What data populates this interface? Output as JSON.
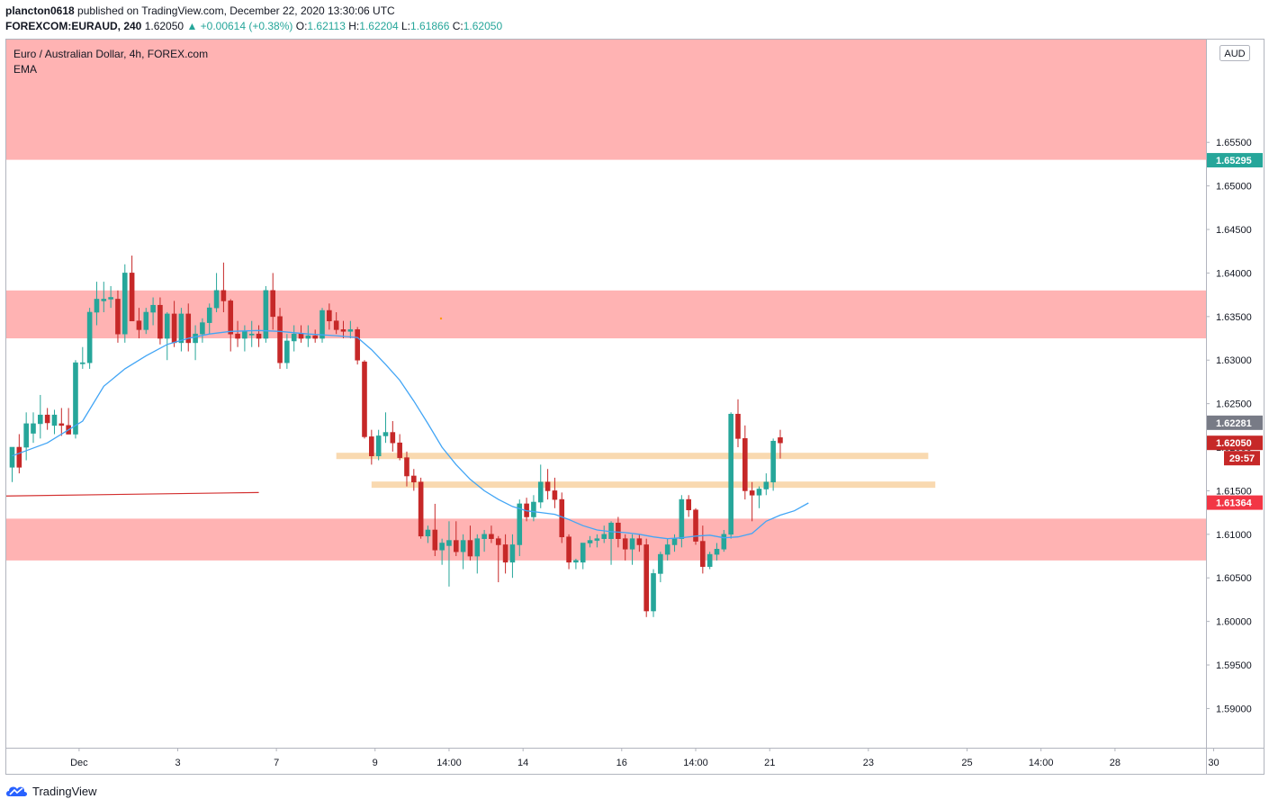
{
  "header": {
    "user": "plancton0618",
    "published": "published on TradingView.com, December 22, 2020 13:30:06 UTC",
    "symbol": "FOREXCOM:EURAUD, 240",
    "last": "1.62050",
    "change": "▲ +0.00614 (+0.38%)",
    "o_label": "O:",
    "o": "1.62113",
    "h_label": "H:",
    "h": "1.62204",
    "l_label": "L:",
    "l": "1.61866",
    "c_label": "C:",
    "c": "1.62050"
  },
  "legend": {
    "title": "Euro / Australian Dollar, 4h, FOREX.com",
    "indicator": "EMA"
  },
  "currency_button": "AUD",
  "footer": {
    "brand": "TradingView"
  },
  "colors": {
    "up": "#26a69a",
    "down": "#c62828",
    "ema": "#42a5f5",
    "zone": "#ffb3b3",
    "level": "#f9d9b0"
  },
  "chart_data": {
    "type": "candlestick",
    "title": "Euro / Australian Dollar, 4h, FOREX.com",
    "ylim": [
      1.5855,
      1.6668
    ],
    "y_ticks": [
      "1.65500",
      "1.65000",
      "1.64500",
      "1.64000",
      "1.63500",
      "1.63000",
      "1.62500",
      "1.62000",
      "1.61500",
      "1.61000",
      "1.60500",
      "1.60000",
      "1.59500",
      "1.59000"
    ],
    "x_ticks": [
      {
        "label": "Dec",
        "i": 9.5
      },
      {
        "label": "3",
        "i": 23.5
      },
      {
        "label": "7",
        "i": 37.5
      },
      {
        "label": "9",
        "i": 51.5
      },
      {
        "label": "14:00",
        "i": 62
      },
      {
        "label": "14",
        "i": 72.5
      },
      {
        "label": "16",
        "i": 86.5
      },
      {
        "label": "14:00",
        "i": 97
      },
      {
        "label": "21",
        "i": 107.5
      },
      {
        "label": "23",
        "i": 121.5
      },
      {
        "label": "25",
        "i": 135.5
      },
      {
        "label": "14:00",
        "i": 146
      },
      {
        "label": "28",
        "i": 156.5
      },
      {
        "label": "30",
        "i": 170.5
      }
    ],
    "price_badges": [
      {
        "value": "1.65295",
        "color": "#26a69a"
      },
      {
        "value": "1.62281",
        "color": "#787b86"
      },
      {
        "value": "1.62050",
        "color": "#c62828",
        "countdown": "29:57"
      },
      {
        "value": "1.61364",
        "color": "#f23645"
      }
    ],
    "zones": [
      {
        "from": 1.653,
        "to": 1.6668
      },
      {
        "from": 1.6325,
        "to": 1.638
      },
      {
        "from": 1.607,
        "to": 1.6118
      }
    ],
    "levels": [
      {
        "price": 1.619,
        "from_i": 46,
        "to_i": 130
      },
      {
        "price": 1.6157,
        "from_i": 51,
        "to_i": 131
      }
    ],
    "trendline": {
      "from": {
        "i": 0,
        "price": 1.6144
      },
      "to": {
        "i": 35,
        "price": 1.6148
      }
    },
    "candles": [
      {
        "o": 1.6177,
        "h": 1.62,
        "l": 1.616,
        "c": 1.62
      },
      {
        "o": 1.62,
        "h": 1.6215,
        "l": 1.617,
        "c": 1.6177
      },
      {
        "o": 1.62,
        "h": 1.624,
        "l": 1.6185,
        "c": 1.6227
      },
      {
        "o": 1.6216,
        "h": 1.624,
        "l": 1.6205,
        "c": 1.6227
      },
      {
        "o": 1.6227,
        "h": 1.626,
        "l": 1.621,
        "c": 1.6237
      },
      {
        "o": 1.6237,
        "h": 1.6245,
        "l": 1.622,
        "c": 1.6228
      },
      {
        "o": 1.6225,
        "h": 1.6243,
        "l": 1.6215,
        "c": 1.6237
      },
      {
        "o": 1.6227,
        "h": 1.6245,
        "l": 1.6213,
        "c": 1.6225
      },
      {
        "o": 1.6225,
        "h": 1.6245,
        "l": 1.6215,
        "c": 1.6215
      },
      {
        "o": 1.6215,
        "h": 1.63,
        "l": 1.621,
        "c": 1.6297
      },
      {
        "o": 1.6297,
        "h": 1.6315,
        "l": 1.629,
        "c": 1.6297
      },
      {
        "o": 1.6297,
        "h": 1.636,
        "l": 1.629,
        "c": 1.6355
      },
      {
        "o": 1.6355,
        "h": 1.639,
        "l": 1.634,
        "c": 1.637
      },
      {
        "o": 1.6368,
        "h": 1.639,
        "l": 1.6355,
        "c": 1.637
      },
      {
        "o": 1.637,
        "h": 1.6385,
        "l": 1.636,
        "c": 1.6372
      },
      {
        "o": 1.637,
        "h": 1.638,
        "l": 1.632,
        "c": 1.633
      },
      {
        "o": 1.633,
        "h": 1.641,
        "l": 1.632,
        "c": 1.64
      },
      {
        "o": 1.64,
        "h": 1.642,
        "l": 1.635,
        "c": 1.6345
      },
      {
        "o": 1.6345,
        "h": 1.636,
        "l": 1.6325,
        "c": 1.6335
      },
      {
        "o": 1.6335,
        "h": 1.636,
        "l": 1.633,
        "c": 1.6355
      },
      {
        "o": 1.6355,
        "h": 1.6372,
        "l": 1.634,
        "c": 1.6363
      },
      {
        "o": 1.6363,
        "h": 1.6372,
        "l": 1.6318,
        "c": 1.6325
      },
      {
        "o": 1.6325,
        "h": 1.6355,
        "l": 1.63,
        "c": 1.6353
      },
      {
        "o": 1.6353,
        "h": 1.6368,
        "l": 1.6315,
        "c": 1.632
      },
      {
        "o": 1.632,
        "h": 1.636,
        "l": 1.631,
        "c": 1.6353
      },
      {
        "o": 1.6353,
        "h": 1.6365,
        "l": 1.631,
        "c": 1.632
      },
      {
        "o": 1.632,
        "h": 1.634,
        "l": 1.63,
        "c": 1.633
      },
      {
        "o": 1.633,
        "h": 1.6348,
        "l": 1.632,
        "c": 1.6343
      },
      {
        "o": 1.6343,
        "h": 1.6365,
        "l": 1.633,
        "c": 1.636
      },
      {
        "o": 1.636,
        "h": 1.64,
        "l": 1.6355,
        "c": 1.638
      },
      {
        "o": 1.638,
        "h": 1.6412,
        "l": 1.6355,
        "c": 1.6368
      },
      {
        "o": 1.6368,
        "h": 1.637,
        "l": 1.631,
        "c": 1.633
      },
      {
        "o": 1.633,
        "h": 1.6345,
        "l": 1.6315,
        "c": 1.6325
      },
      {
        "o": 1.6325,
        "h": 1.634,
        "l": 1.631,
        "c": 1.6333
      },
      {
        "o": 1.633,
        "h": 1.6345,
        "l": 1.6315,
        "c": 1.633
      },
      {
        "o": 1.633,
        "h": 1.634,
        "l": 1.6315,
        "c": 1.6325
      },
      {
        "o": 1.6325,
        "h": 1.6385,
        "l": 1.632,
        "c": 1.638
      },
      {
        "o": 1.638,
        "h": 1.64,
        "l": 1.6335,
        "c": 1.635
      },
      {
        "o": 1.635,
        "h": 1.636,
        "l": 1.629,
        "c": 1.6297
      },
      {
        "o": 1.6297,
        "h": 1.633,
        "l": 1.629,
        "c": 1.6322
      },
      {
        "o": 1.6322,
        "h": 1.634,
        "l": 1.631,
        "c": 1.633
      },
      {
        "o": 1.633,
        "h": 1.634,
        "l": 1.632,
        "c": 1.6325
      },
      {
        "o": 1.6325,
        "h": 1.634,
        "l": 1.6315,
        "c": 1.6328
      },
      {
        "o": 1.6328,
        "h": 1.6335,
        "l": 1.632,
        "c": 1.6325
      },
      {
        "o": 1.6325,
        "h": 1.636,
        "l": 1.632,
        "c": 1.6357
      },
      {
        "o": 1.6357,
        "h": 1.6365,
        "l": 1.6335,
        "c": 1.6345
      },
      {
        "o": 1.6345,
        "h": 1.6355,
        "l": 1.633,
        "c": 1.6335
      },
      {
        "o": 1.6335,
        "h": 1.6345,
        "l": 1.6325,
        "c": 1.6333
      },
      {
        "o": 1.6333,
        "h": 1.6345,
        "l": 1.6325,
        "c": 1.6335
      },
      {
        "o": 1.6335,
        "h": 1.6338,
        "l": 1.6295,
        "c": 1.63
      },
      {
        "o": 1.6298,
        "h": 1.63,
        "l": 1.621,
        "c": 1.6212
      },
      {
        "o": 1.6212,
        "h": 1.622,
        "l": 1.618,
        "c": 1.619
      },
      {
        "o": 1.619,
        "h": 1.622,
        "l": 1.6185,
        "c": 1.6213
      },
      {
        "o": 1.6213,
        "h": 1.624,
        "l": 1.6205,
        "c": 1.6217
      },
      {
        "o": 1.6217,
        "h": 1.623,
        "l": 1.6195,
        "c": 1.6205
      },
      {
        "o": 1.6205,
        "h": 1.6215,
        "l": 1.6185,
        "c": 1.6188
      },
      {
        "o": 1.6188,
        "h": 1.6195,
        "l": 1.6155,
        "c": 1.6167
      },
      {
        "o": 1.6167,
        "h": 1.6175,
        "l": 1.615,
        "c": 1.616
      },
      {
        "o": 1.616,
        "h": 1.6165,
        "l": 1.6095,
        "c": 1.6098
      },
      {
        "o": 1.6098,
        "h": 1.611,
        "l": 1.609,
        "c": 1.6105
      },
      {
        "o": 1.6105,
        "h": 1.6135,
        "l": 1.6075,
        "c": 1.6082
      },
      {
        "o": 1.6082,
        "h": 1.6095,
        "l": 1.6065,
        "c": 1.609
      },
      {
        "o": 1.6087,
        "h": 1.6115,
        "l": 1.604,
        "c": 1.6093
      },
      {
        "o": 1.6093,
        "h": 1.6115,
        "l": 1.6075,
        "c": 1.608
      },
      {
        "o": 1.608,
        "h": 1.61,
        "l": 1.606,
        "c": 1.6093
      },
      {
        "o": 1.6093,
        "h": 1.611,
        "l": 1.607,
        "c": 1.6075
      },
      {
        "o": 1.6075,
        "h": 1.61,
        "l": 1.6055,
        "c": 1.6095
      },
      {
        "o": 1.6095,
        "h": 1.6105,
        "l": 1.608,
        "c": 1.61
      },
      {
        "o": 1.61,
        "h": 1.611,
        "l": 1.609,
        "c": 1.6095
      },
      {
        "o": 1.6095,
        "h": 1.6098,
        "l": 1.6045,
        "c": 1.6088
      },
      {
        "o": 1.6088,
        "h": 1.61,
        "l": 1.6055,
        "c": 1.6068
      },
      {
        "o": 1.6068,
        "h": 1.61,
        "l": 1.605,
        "c": 1.6088
      },
      {
        "o": 1.6088,
        "h": 1.614,
        "l": 1.6075,
        "c": 1.6135
      },
      {
        "o": 1.6135,
        "h": 1.6142,
        "l": 1.6115,
        "c": 1.612
      },
      {
        "o": 1.612,
        "h": 1.6145,
        "l": 1.6115,
        "c": 1.6137
      },
      {
        "o": 1.6137,
        "h": 1.618,
        "l": 1.613,
        "c": 1.616
      },
      {
        "o": 1.616,
        "h": 1.6175,
        "l": 1.614,
        "c": 1.615
      },
      {
        "o": 1.615,
        "h": 1.6165,
        "l": 1.613,
        "c": 1.614
      },
      {
        "o": 1.614,
        "h": 1.6148,
        "l": 1.609,
        "c": 1.6097
      },
      {
        "o": 1.6097,
        "h": 1.61,
        "l": 1.606,
        "c": 1.6068
      },
      {
        "o": 1.6068,
        "h": 1.6072,
        "l": 1.606,
        "c": 1.607
      },
      {
        "o": 1.6068,
        "h": 1.609,
        "l": 1.606,
        "c": 1.609
      },
      {
        "o": 1.609,
        "h": 1.6098,
        "l": 1.6085,
        "c": 1.6093
      },
      {
        "o": 1.6093,
        "h": 1.61,
        "l": 1.6085,
        "c": 1.6095
      },
      {
        "o": 1.6095,
        "h": 1.611,
        "l": 1.609,
        "c": 1.61
      },
      {
        "o": 1.6095,
        "h": 1.6115,
        "l": 1.6065,
        "c": 1.6113
      },
      {
        "o": 1.6113,
        "h": 1.612,
        "l": 1.6085,
        "c": 1.6095
      },
      {
        "o": 1.6095,
        "h": 1.61,
        "l": 1.607,
        "c": 1.6083
      },
      {
        "o": 1.6083,
        "h": 1.61,
        "l": 1.6065,
        "c": 1.6095
      },
      {
        "o": 1.6095,
        "h": 1.61,
        "l": 1.608,
        "c": 1.6088
      },
      {
        "o": 1.6088,
        "h": 1.6095,
        "l": 1.6005,
        "c": 1.6012
      },
      {
        "o": 1.6012,
        "h": 1.606,
        "l": 1.6005,
        "c": 1.6055
      },
      {
        "o": 1.6055,
        "h": 1.608,
        "l": 1.6045,
        "c": 1.6077
      },
      {
        "o": 1.6077,
        "h": 1.6095,
        "l": 1.607,
        "c": 1.6088
      },
      {
        "o": 1.6088,
        "h": 1.61,
        "l": 1.608,
        "c": 1.6095
      },
      {
        "o": 1.6095,
        "h": 1.6145,
        "l": 1.6085,
        "c": 1.614
      },
      {
        "o": 1.614,
        "h": 1.6145,
        "l": 1.612,
        "c": 1.6128
      },
      {
        "o": 1.6128,
        "h": 1.613,
        "l": 1.6088,
        "c": 1.6092
      },
      {
        "o": 1.6092,
        "h": 1.611,
        "l": 1.6055,
        "c": 1.6063
      },
      {
        "o": 1.6063,
        "h": 1.608,
        "l": 1.606,
        "c": 1.6077
      },
      {
        "o": 1.6077,
        "h": 1.609,
        "l": 1.607,
        "c": 1.6083
      },
      {
        "o": 1.6083,
        "h": 1.6105,
        "l": 1.608,
        "c": 1.61
      },
      {
        "o": 1.61,
        "h": 1.624,
        "l": 1.6095,
        "c": 1.6238
      },
      {
        "o": 1.6238,
        "h": 1.6255,
        "l": 1.62,
        "c": 1.621
      },
      {
        "o": 1.621,
        "h": 1.6225,
        "l": 1.614,
        "c": 1.615
      },
      {
        "o": 1.615,
        "h": 1.616,
        "l": 1.6115,
        "c": 1.6145
      },
      {
        "o": 1.6145,
        "h": 1.6155,
        "l": 1.613,
        "c": 1.6152
      },
      {
        "o": 1.6152,
        "h": 1.617,
        "l": 1.6145,
        "c": 1.616
      },
      {
        "o": 1.616,
        "h": 1.621,
        "l": 1.615,
        "c": 1.6207
      },
      {
        "o": 1.6211,
        "h": 1.622,
        "l": 1.6187,
        "c": 1.6205
      }
    ],
    "ema": [
      [
        0,
        1.619
      ],
      [
        5,
        1.6205
      ],
      [
        10,
        1.623
      ],
      [
        13,
        1.627
      ],
      [
        16,
        1.629
      ],
      [
        19,
        1.6305
      ],
      [
        22,
        1.6318
      ],
      [
        25,
        1.6325
      ],
      [
        28,
        1.633
      ],
      [
        31,
        1.6333
      ],
      [
        35,
        1.6334
      ],
      [
        38,
        1.6333
      ],
      [
        42,
        1.633
      ],
      [
        46,
        1.6328
      ],
      [
        49,
        1.6326
      ],
      [
        51,
        1.6312
      ],
      [
        53,
        1.6295
      ],
      [
        55,
        1.6277
      ],
      [
        57,
        1.6253
      ],
      [
        59,
        1.6227
      ],
      [
        61,
        1.62
      ],
      [
        63,
        1.618
      ],
      [
        65,
        1.6163
      ],
      [
        67,
        1.615
      ],
      [
        69,
        1.614
      ],
      [
        71,
        1.6132
      ],
      [
        73,
        1.6127
      ],
      [
        75,
        1.6125
      ],
      [
        77,
        1.6123
      ],
      [
        79,
        1.6117
      ],
      [
        81,
        1.611
      ],
      [
        83,
        1.6105
      ],
      [
        85,
        1.6103
      ],
      [
        87,
        1.6102
      ],
      [
        89,
        1.61
      ],
      [
        91,
        1.6097
      ],
      [
        93,
        1.6095
      ],
      [
        95,
        1.6096
      ],
      [
        97,
        1.6098
      ],
      [
        99,
        1.6099
      ],
      [
        101,
        1.6096
      ],
      [
        103,
        1.6097
      ],
      [
        105,
        1.6101
      ],
      [
        107,
        1.6115
      ],
      [
        109,
        1.6122
      ],
      [
        111,
        1.6127
      ],
      [
        113,
        1.6136
      ]
    ]
  }
}
